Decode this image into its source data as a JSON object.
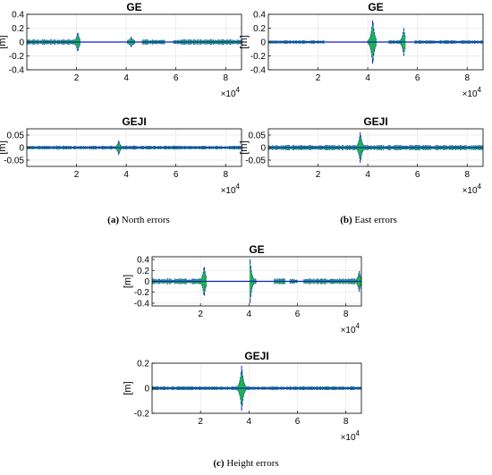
{
  "chart_data": [
    {
      "type": "scatter",
      "title": "GE",
      "ylabel": "[m]",
      "xlim": [
        0,
        86400
      ],
      "ylim": [
        -0.4,
        0.4
      ],
      "yticks": [
        "0.4",
        "0.2",
        "0",
        "-0.2",
        "-0.4"
      ],
      "yticks_values": [
        0.4,
        0.2,
        0,
        -0.2,
        -0.4
      ],
      "xticks": [
        "2",
        "4",
        "6",
        "8"
      ],
      "xticks_values": [
        20000,
        40000,
        60000,
        80000
      ],
      "x_multiplier": "×10",
      "x_multiplier_exp": "4",
      "grid": true,
      "segments": [
        [
          0,
          21500
        ],
        [
          40500,
          43500
        ],
        [
          46500,
          55500
        ],
        [
          59000,
          86400
        ]
      ],
      "spikes": [
        {
          "x": 20500,
          "h": 0.15
        },
        {
          "x": 42000,
          "h": 0.08
        }
      ],
      "amp": 0.03
    },
    {
      "type": "scatter",
      "title": "GE",
      "ylabel": "[m]",
      "xlim": [
        0,
        86400
      ],
      "ylim": [
        -0.4,
        0.4
      ],
      "yticks": [
        "0.4",
        "0.2",
        "0",
        "-0.2",
        "-0.4"
      ],
      "yticks_values": [
        0.4,
        0.2,
        0,
        -0.2,
        -0.4
      ],
      "xticks": [
        "2",
        "4",
        "6",
        "8"
      ],
      "xticks_values": [
        20000,
        40000,
        60000,
        80000
      ],
      "x_multiplier": "×10",
      "x_multiplier_exp": "4",
      "grid": true,
      "segments": [
        [
          0,
          22500
        ],
        [
          40000,
          43500
        ],
        [
          48500,
          55000
        ],
        [
          59000,
          86400
        ]
      ],
      "spikes": [
        {
          "x": 42000,
          "h": 0.35
        },
        {
          "x": 54500,
          "h": 0.2
        }
      ],
      "amp": 0.02
    },
    {
      "type": "scatter",
      "title": "GEJI",
      "ylabel": "[m]",
      "xlim": [
        0,
        86400
      ],
      "ylim": [
        -0.075,
        0.075
      ],
      "yticks": [
        "0.05",
        "0",
        "-0.05"
      ],
      "yticks_values": [
        0.05,
        0,
        -0.05
      ],
      "xticks": [
        "2",
        "4",
        "6",
        "8"
      ],
      "xticks_values": [
        20000,
        40000,
        60000,
        80000
      ],
      "x_multiplier": "×10",
      "x_multiplier_exp": "4",
      "grid": true,
      "segments": [
        [
          0,
          86400
        ]
      ],
      "spikes": [
        {
          "x": 37000,
          "h": 0.03
        }
      ],
      "amp": 0.006
    },
    {
      "type": "scatter",
      "title": "GEJI",
      "ylabel": "[m]",
      "xlim": [
        0,
        86400
      ],
      "ylim": [
        -0.075,
        0.075
      ],
      "yticks": [
        "0.05",
        "0",
        "-0.05"
      ],
      "yticks_values": [
        0.05,
        0,
        -0.05
      ],
      "xticks": [
        "2",
        "4",
        "6",
        "8"
      ],
      "xticks_values": [
        20000,
        40000,
        60000,
        80000
      ],
      "x_multiplier": "×10",
      "x_multiplier_exp": "4",
      "grid": true,
      "segments": [
        [
          0,
          86400
        ]
      ],
      "spikes": [
        {
          "x": 37000,
          "h": 0.065
        }
      ],
      "amp": 0.008
    },
    {
      "type": "scatter",
      "title": "GE",
      "ylabel": "[m]",
      "xlim": [
        0,
        86400
      ],
      "ylim": [
        -0.45,
        0.45
      ],
      "yticks": [
        "0.4",
        "0.2",
        "0",
        "-0.2",
        "-0.4"
      ],
      "yticks_values": [
        0.4,
        0.2,
        0,
        -0.2,
        -0.4
      ],
      "xticks": [
        "2",
        "4",
        "6",
        "8"
      ],
      "xticks_values": [
        20000,
        40000,
        60000,
        80000
      ],
      "x_multiplier": "×10",
      "x_multiplier_exp": "4",
      "grid": true,
      "segments": [
        [
          0,
          22500
        ],
        [
          40500,
          43000
        ],
        [
          50500,
          55000
        ],
        [
          57000,
          60000
        ],
        [
          62500,
          86400
        ]
      ],
      "spikes": [
        {
          "x": 21500,
          "h": 0.3
        },
        {
          "x": 40500,
          "h": 0.4
        },
        {
          "x": 85500,
          "h": 0.2
        }
      ],
      "amp": 0.04
    },
    {
      "type": "scatter",
      "title": "GEJI",
      "ylabel": "[m]",
      "xlim": [
        0,
        86400
      ],
      "ylim": [
        -0.2,
        0.2
      ],
      "yticks": [
        "0.2",
        "0",
        "-0.2"
      ],
      "yticks_values": [
        0.2,
        0,
        -0.2
      ],
      "xticks": [
        "2",
        "4",
        "6",
        "8"
      ],
      "xticks_values": [
        20000,
        40000,
        60000,
        80000
      ],
      "x_multiplier": "×10",
      "x_multiplier_exp": "4",
      "grid": true,
      "segments": [
        [
          0,
          86400
        ]
      ],
      "spikes": [
        {
          "x": 37000,
          "h": 0.19
        }
      ],
      "amp": 0.012
    }
  ],
  "captions": [
    {
      "label": "(a)",
      "text": " North errors"
    },
    {
      "label": "(b)",
      "text": " East errors"
    },
    {
      "label": "(c)",
      "text": " Height errors"
    }
  ],
  "colors": {
    "outer": "#0a1fd0",
    "inner": "#22e022",
    "axis": "#000000",
    "grid": "#e6e6e6"
  }
}
